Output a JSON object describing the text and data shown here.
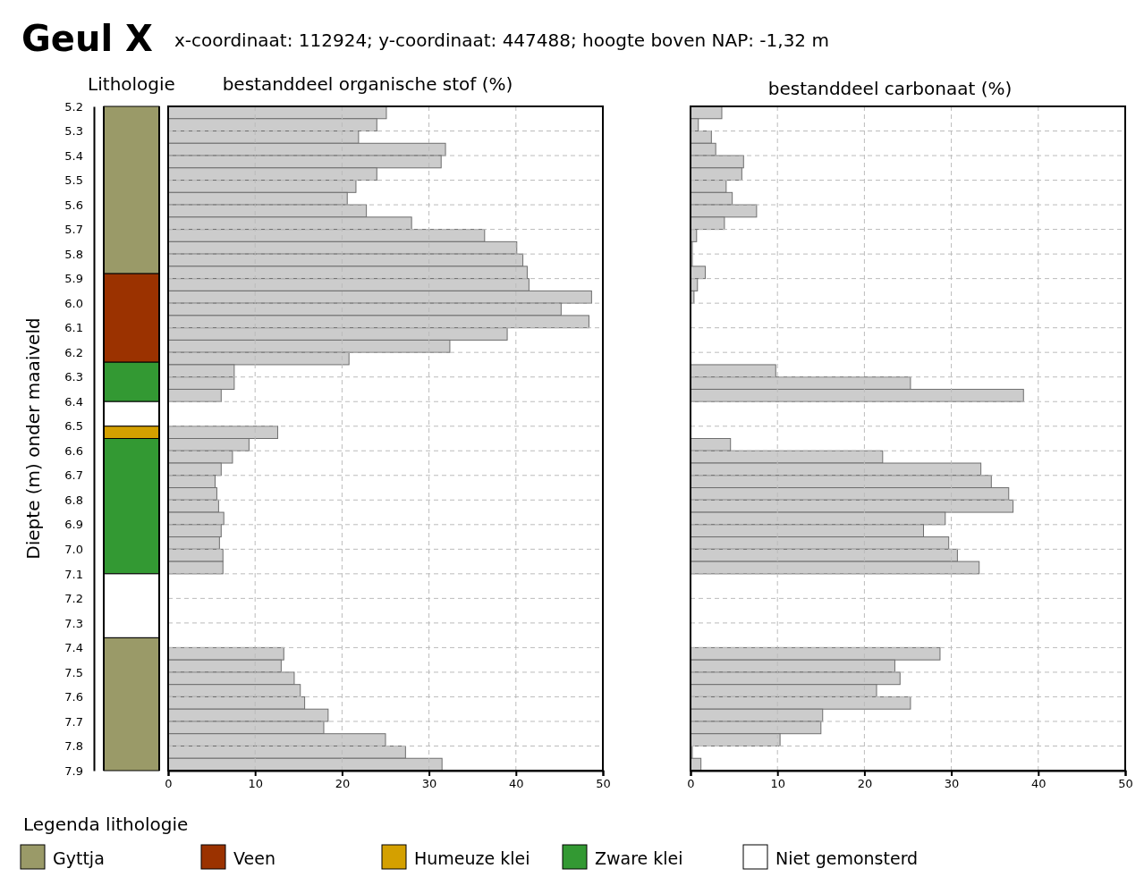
{
  "chart_data": [
    {
      "type": "other",
      "title": "Geul X",
      "subtitle": "x-coordinaat: 112924; y-coordinaat: 447488; hoogte boven NAP: -1,32 m"
    },
    {
      "type": "bar",
      "ylabel": "Diepte (m) onder maaiveld",
      "annotations": [
        "Lithologie"
      ],
      "legend_title": "Legenda lithologie",
      "legend": "bottom",
      "categories": [
        null
      ],
      "ylim": [
        7.9,
        5.2
      ],
      "yticks": [
        5.2,
        5.3,
        5.4,
        5.5,
        5.6,
        5.7,
        5.8,
        5.9,
        {
          "value": 6,
          "label": "6.0"
        },
        6.1,
        6.2,
        6.3,
        6.4,
        6.5,
        6.6,
        6.7,
        6.8,
        6.9,
        {
          "value": 7,
          "label": "7.0"
        },
        7.1,
        7.2,
        7.3,
        7.4,
        7.5,
        7.6,
        7.7,
        7.8,
        7.9
      ],
      "tick_labels": "y",
      "series": [
        {
          "name": "Gyttja",
          "color": "#9a9a68",
          "base": [
            5.2
          ],
          "values": [
            0.68
          ]
        },
        {
          "name": "Veen",
          "color": "#9b3200",
          "base": [
            5.88
          ],
          "values": [
            0.36
          ]
        },
        {
          "color": "#339933",
          "base": [
            6.24
          ],
          "values": [
            0.16
          ]
        },
        {
          "color": "#ffffff",
          "base": [
            6.4
          ],
          "values": [
            0.1
          ]
        },
        {
          "name": "Humeuze klei",
          "color": "#d4a000",
          "base": [
            6.5
          ],
          "values": [
            0.05
          ]
        },
        {
          "name": "Zware klei",
          "color": "#339933",
          "base": [
            6.55
          ],
          "values": [
            0.55
          ]
        },
        {
          "name": "Niet gemonsterd",
          "color": "#ffffff",
          "base": [
            7.1
          ],
          "values": [
            0.26
          ]
        },
        {
          "color": "#9a9a68",
          "base": [
            7.36
          ],
          "values": [
            0.54
          ]
        }
      ]
    },
    {
      "type": "histogram",
      "orientation": "horizontal",
      "title": "bestanddeel organische stof (%)",
      "color": "#cccccc",
      "grid": true,
      "tick_labels": "x",
      "xlim": [
        0,
        50
      ],
      "xticks": [
        0,
        10,
        20,
        30,
        40,
        50
      ],
      "ylim": [
        7.9,
        5.2
      ],
      "yticks": [
        5.2,
        5.3,
        5.4,
        5.5,
        5.6,
        5.7,
        5.8,
        5.9,
        6,
        6.1,
        6.2,
        6.3,
        6.4,
        6.5,
        6.6,
        6.7,
        6.8,
        6.9,
        7,
        7.1,
        7.2,
        7.3,
        7.4,
        7.5,
        7.6,
        7.7,
        7.8,
        7.9
      ],
      "bins": [
        5.2,
        5.25,
        5.3,
        5.35,
        5.4,
        5.45,
        5.5,
        5.55,
        5.6,
        5.65,
        5.7,
        5.75,
        5.8,
        5.85,
        5.9,
        5.95,
        6,
        6.05,
        6.1,
        6.15,
        6.2,
        6.25,
        6.3,
        6.35,
        6.4,
        6.5,
        6.55,
        6.6,
        6.65,
        6.7,
        6.75,
        6.8,
        6.85,
        6.9,
        6.95,
        7,
        7.05,
        7.1,
        7.4,
        7.45,
        7.5,
        7.55,
        7.6,
        7.65,
        7.7,
        7.75,
        7.8,
        7.85,
        7.9
      ],
      "values": [
        25.1,
        24.0,
        21.9,
        31.9,
        31.4,
        24.0,
        21.6,
        20.6,
        22.8,
        28.0,
        36.4,
        40.1,
        40.8,
        41.3,
        41.5,
        48.7,
        45.2,
        48.4,
        39.0,
        32.4,
        20.8,
        7.6,
        7.6,
        6.1,
        null,
        12.6,
        9.3,
        7.4,
        6.1,
        5.4,
        5.6,
        5.8,
        6.4,
        6.1,
        5.9,
        6.3,
        6.3,
        null,
        13.3,
        13.0,
        14.5,
        15.2,
        15.7,
        18.4,
        17.9,
        25.0,
        27.3,
        31.5
      ]
    },
    {
      "type": "histogram",
      "orientation": "horizontal",
      "title": "bestanddeel carbonaat (%)",
      "color": "#cccccc",
      "grid": true,
      "tick_labels": "x",
      "xlim": [
        0,
        50
      ],
      "xticks": [
        0,
        10,
        20,
        30,
        40,
        50
      ],
      "ylim": [
        7.9,
        5.2
      ],
      "yticks": [
        5.2,
        5.3,
        5.4,
        5.5,
        5.6,
        5.7,
        5.8,
        5.9,
        6,
        6.1,
        6.2,
        6.3,
        6.4,
        6.5,
        6.6,
        6.7,
        6.8,
        6.9,
        7,
        7.1,
        7.2,
        7.3,
        7.4,
        7.5,
        7.6,
        7.7,
        7.8,
        7.9
      ],
      "bins": [
        5.2,
        5.25,
        5.3,
        5.35,
        5.4,
        5.45,
        5.5,
        5.55,
        5.6,
        5.65,
        5.7,
        5.75,
        5.8,
        5.85,
        5.9,
        5.95,
        6,
        6.25,
        6.3,
        6.35,
        6.4,
        6.55,
        6.6,
        6.65,
        6.7,
        6.75,
        6.8,
        6.85,
        6.9,
        6.95,
        7,
        7.05,
        7.1,
        7.4,
        7.45,
        7.5,
        7.55,
        7.6,
        7.65,
        7.7,
        7.75,
        7.8,
        7.85,
        7.9
      ],
      "values": [
        3.6,
        0.9,
        2.4,
        2.9,
        6.1,
        5.9,
        4.1,
        4.8,
        7.6,
        3.9,
        0.7,
        0.2,
        0.2,
        1.7,
        0.8,
        0.4,
        null,
        9.8,
        25.3,
        38.3,
        null,
        4.6,
        22.1,
        33.4,
        34.6,
        36.6,
        37.1,
        29.3,
        26.8,
        29.7,
        30.7,
        33.2,
        null,
        28.7,
        23.5,
        24.1,
        21.4,
        25.3,
        15.2,
        15.0,
        10.3,
        0.2,
        1.2
      ]
    }
  ]
}
